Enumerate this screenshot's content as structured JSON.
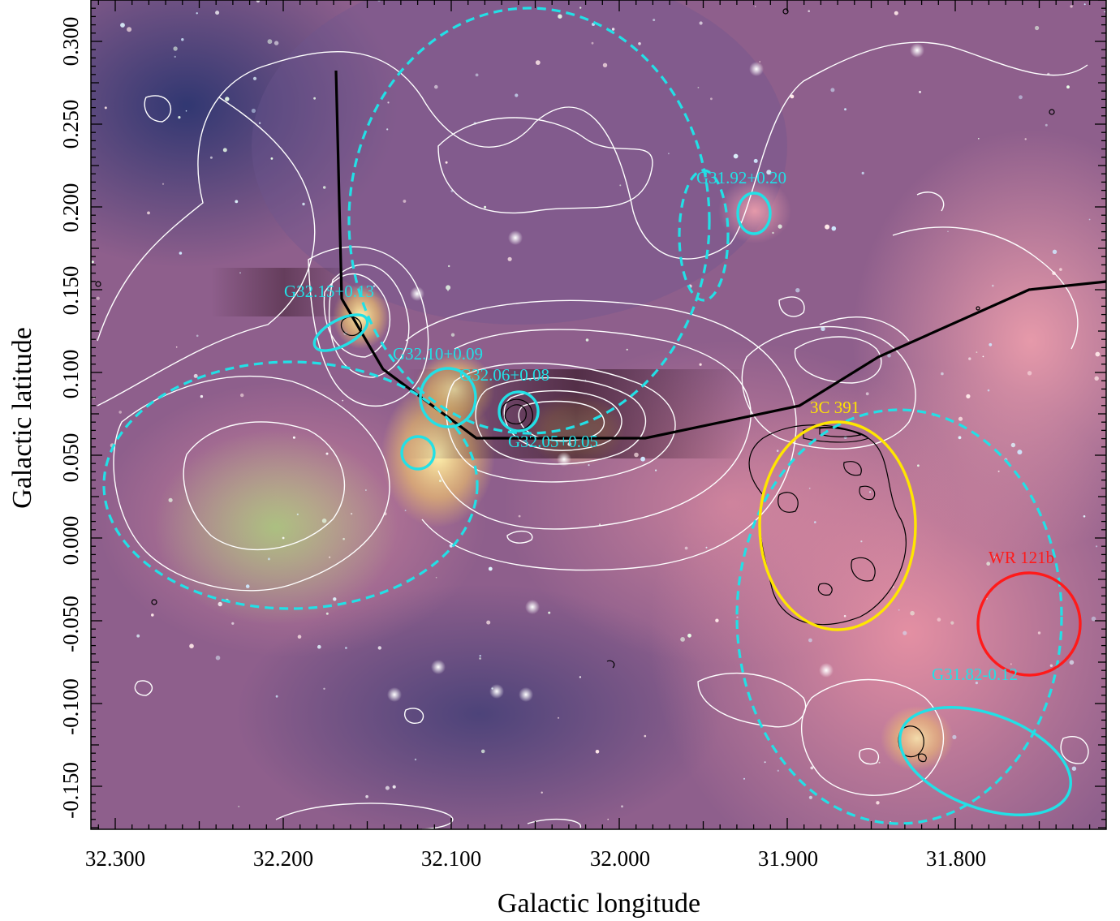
{
  "figure": {
    "xlabel": "Galactic longitude",
    "ylabel": "Galactic latitude",
    "x_ticks": [
      "32.300",
      "32.200",
      "32.100",
      "32.000",
      "31.900",
      "31.800"
    ],
    "y_ticks": [
      "0.300",
      "0.250",
      "0.200",
      "0.150",
      "0.100",
      "0.050",
      "0.000",
      "-0.050",
      "-0.100",
      "-0.150"
    ],
    "x_range": [
      32.317,
      31.717
    ],
    "y_range": [
      -0.177,
      0.322
    ]
  },
  "annotations": {
    "g3215": "G32.15+0.13",
    "g3210": "G32.10+0.09",
    "g3206": "G32.06+0.08",
    "g3205": "G32.05+0.05",
    "g3192": "G31.92+0.20",
    "g3182": "G31.82-0.12",
    "snr": "3C 391",
    "wr": "WR 121b"
  },
  "colors": {
    "region": "#22e0e6",
    "snr": "#ffe600",
    "wr": "#ff1a1a",
    "contour_white": "#ffffff",
    "contour_black": "#000000",
    "background_pink": "#c0728e",
    "background_blue": "#3c3f7a"
  }
}
